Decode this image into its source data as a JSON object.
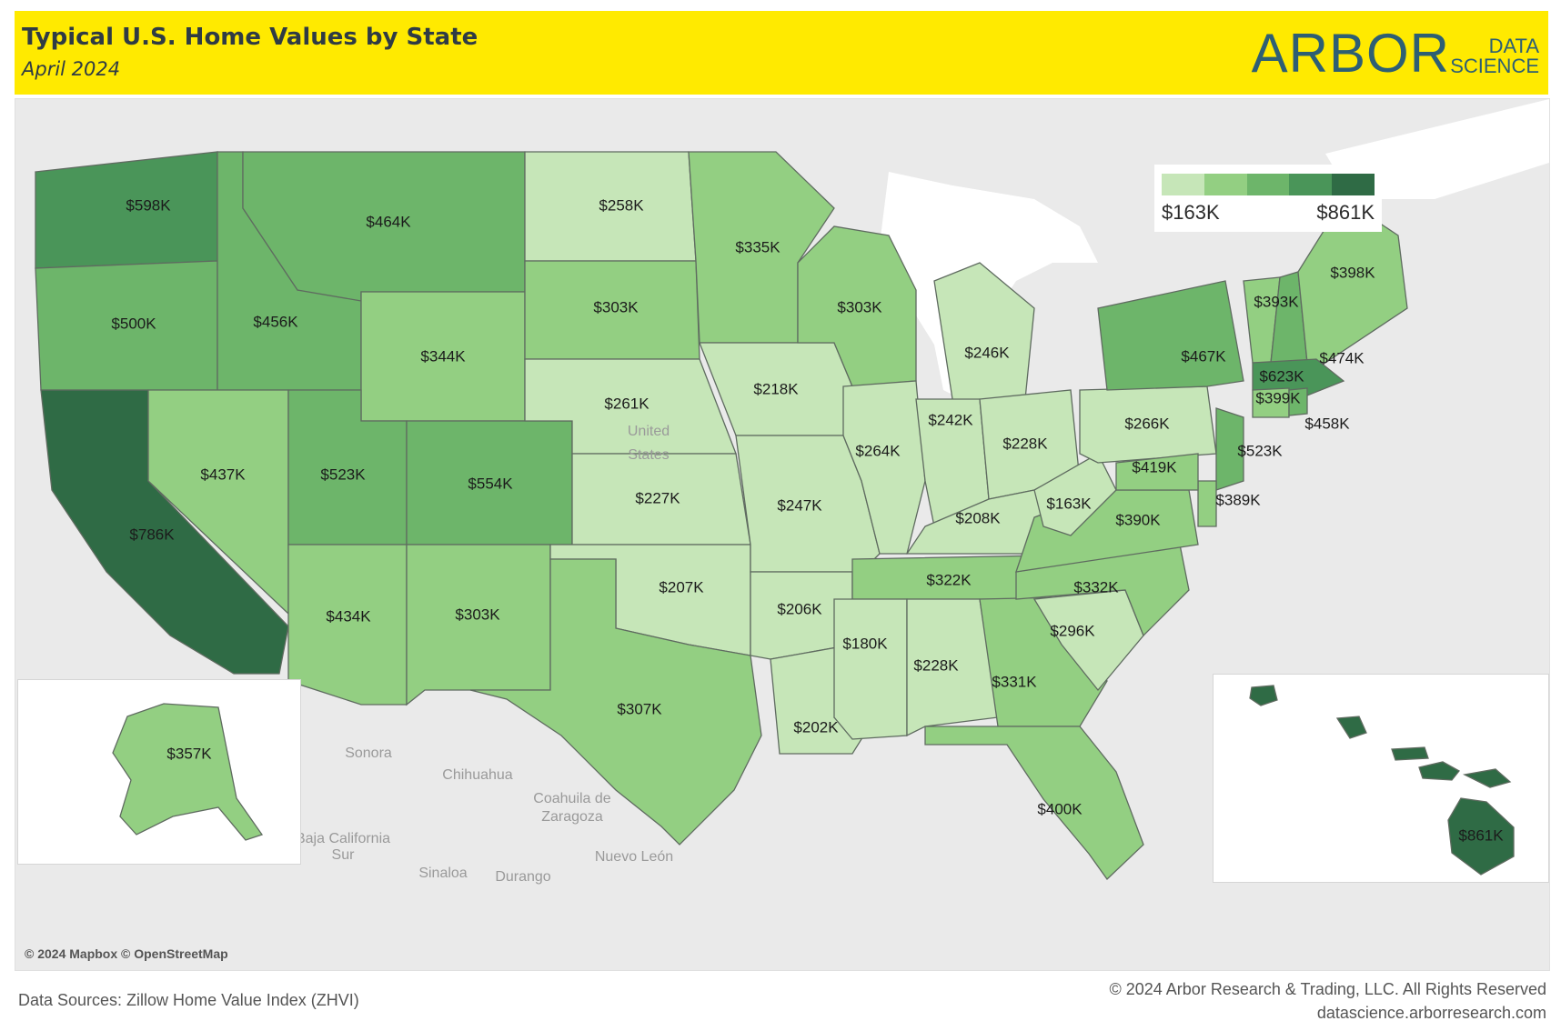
{
  "header": {
    "title": "Typical U.S. Home Values by State",
    "subtitle": "April 2024",
    "logo": {
      "primary": "ARBOR",
      "secondary_top": "DATA",
      "secondary_bottom": "SCIENCE"
    },
    "background_color": "#ffea00"
  },
  "legend": {
    "min_label": "$163K",
    "max_label": "$861K",
    "color_steps": [
      "#c6e6b8",
      "#93cf82",
      "#6db56a",
      "#4a9559",
      "#2f6b45"
    ]
  },
  "attribution": "© 2024 Mapbox © OpenStreetMap",
  "footer": {
    "source": "Data Sources: Zillow Home Value Index (ZHVI)",
    "copyright": "© 2024 Arbor Research & Trading, LLC. All Rights Reserved",
    "url": "datascience.arborresearch.com"
  },
  "place_labels": [
    "Sonora",
    "Chihuahua",
    "Coahuila de",
    "Zaragoza",
    "Baja California",
    "Sur",
    "Nuevo León",
    "Sinaloa",
    "Durango",
    "United",
    "States"
  ],
  "chart_data": {
    "type": "choropleth",
    "title": "Typical U.S. Home Values by State",
    "subtitle": "April 2024",
    "color_scale": {
      "min": "$163K",
      "max": "$861K"
    },
    "states": [
      {
        "state": "WA",
        "value": "$598K"
      },
      {
        "state": "OR",
        "value": "$500K"
      },
      {
        "state": "CA",
        "value": "$786K"
      },
      {
        "state": "ID",
        "value": "$456K"
      },
      {
        "state": "NV",
        "value": "$437K"
      },
      {
        "state": "MT",
        "value": "$464K"
      },
      {
        "state": "WY",
        "value": "$344K"
      },
      {
        "state": "UT",
        "value": "$523K"
      },
      {
        "state": "AZ",
        "value": "$434K"
      },
      {
        "state": "CO",
        "value": "$554K"
      },
      {
        "state": "NM",
        "value": "$303K"
      },
      {
        "state": "ND",
        "value": "$258K"
      },
      {
        "state": "SD",
        "value": "$303K"
      },
      {
        "state": "NE",
        "value": "$261K"
      },
      {
        "state": "KS",
        "value": "$227K"
      },
      {
        "state": "OK",
        "value": "$207K"
      },
      {
        "state": "TX",
        "value": "$307K"
      },
      {
        "state": "MN",
        "value": "$335K"
      },
      {
        "state": "IA",
        "value": "$218K"
      },
      {
        "state": "MO",
        "value": "$247K"
      },
      {
        "state": "AR",
        "value": "$206K"
      },
      {
        "state": "LA",
        "value": "$202K"
      },
      {
        "state": "WI",
        "value": "$303K"
      },
      {
        "state": "IL",
        "value": "$264K"
      },
      {
        "state": "MI",
        "value": "$246K"
      },
      {
        "state": "IN",
        "value": "$242K"
      },
      {
        "state": "OH",
        "value": "$228K"
      },
      {
        "state": "KY",
        "value": "$208K"
      },
      {
        "state": "TN",
        "value": "$322K"
      },
      {
        "state": "MS",
        "value": "$180K"
      },
      {
        "state": "AL",
        "value": "$228K"
      },
      {
        "state": "GA",
        "value": "$331K"
      },
      {
        "state": "FL",
        "value": "$400K"
      },
      {
        "state": "SC",
        "value": "$296K"
      },
      {
        "state": "NC",
        "value": "$332K"
      },
      {
        "state": "VA",
        "value": "$390K"
      },
      {
        "state": "WV",
        "value": "$163K"
      },
      {
        "state": "PA",
        "value": "$266K"
      },
      {
        "state": "NY",
        "value": "$467K"
      },
      {
        "state": "VT",
        "value": "$393K"
      },
      {
        "state": "NH",
        "value": "$474K"
      },
      {
        "state": "ME",
        "value": "$398K"
      },
      {
        "state": "MA",
        "value": "$623K"
      },
      {
        "state": "CT",
        "value": "$399K"
      },
      {
        "state": "RI",
        "value": "$458K"
      },
      {
        "state": "NJ",
        "value": "$523K"
      },
      {
        "state": "DE",
        "value": "$389K"
      },
      {
        "state": "MD",
        "value": "$419K"
      },
      {
        "state": "AK",
        "value": "$357K"
      },
      {
        "state": "HI",
        "value": "$861K"
      }
    ]
  }
}
